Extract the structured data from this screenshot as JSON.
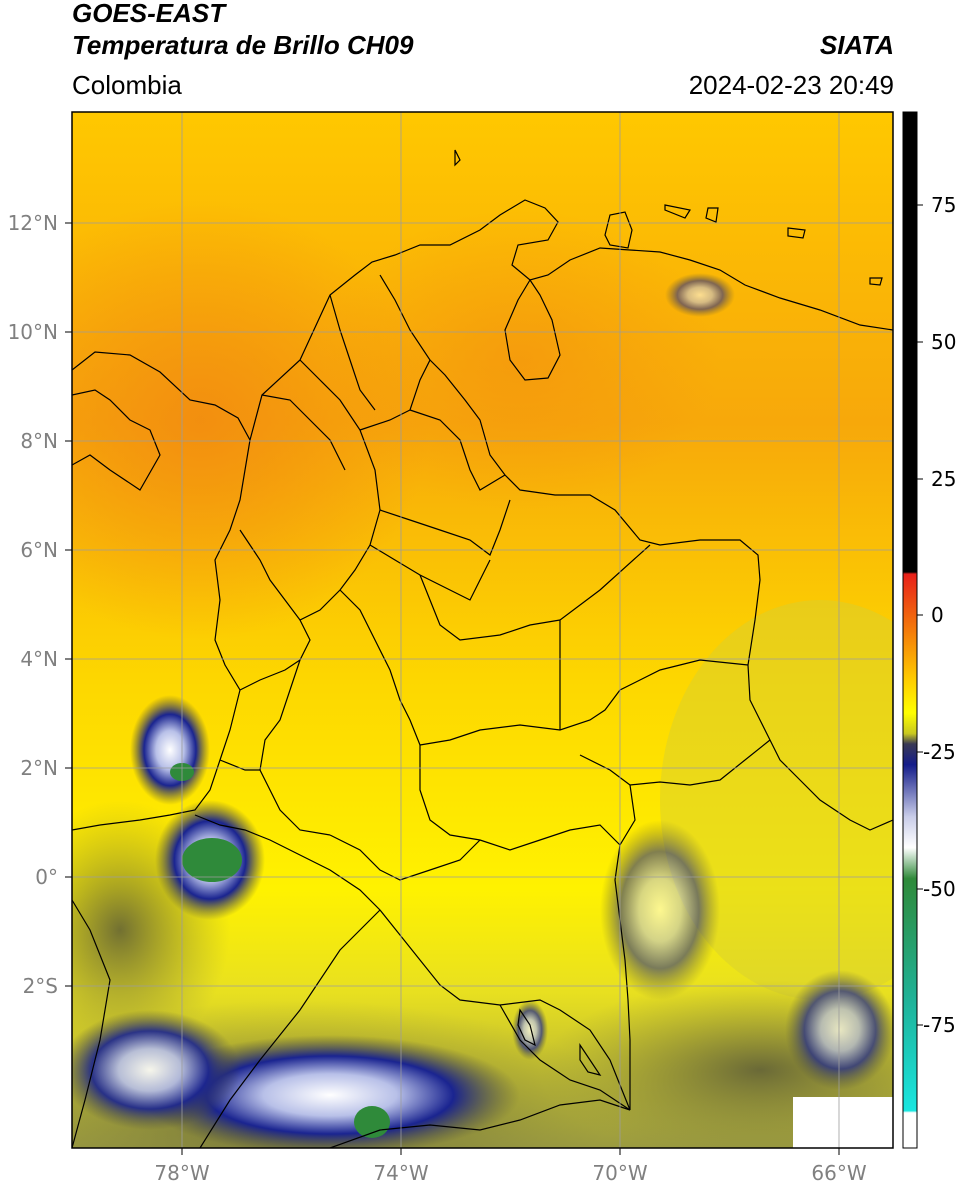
{
  "header": {
    "line1": "GOES-EAST",
    "line2": "Temperatura de Brillo CH09",
    "brand": "SIATA",
    "region": "Colombia",
    "timestamp": "2024-02-23 20:49"
  },
  "axes": {
    "lat_ticks": [
      "12°N",
      "10°N",
      "8°N",
      "6°N",
      "4°N",
      "2°N",
      "0°",
      "2°S"
    ],
    "lon_ticks": [
      "78°W",
      "74°W",
      "70°W",
      "66°W"
    ]
  },
  "colorbar": {
    "tick_labels": [
      "75",
      "50",
      "25",
      "0",
      "-25",
      "-50",
      "-75"
    ],
    "colors": {
      "black": "#000000",
      "red": "#e8201a",
      "orange": "#f39a0a",
      "yellow": "#ffff00",
      "olive": "#6b6b3a",
      "navy": "#141c8a",
      "white": "#ffffff",
      "green": "#2f8a3a",
      "teal": "#1fb39a",
      "cyan": "#19e6e0"
    }
  }
}
